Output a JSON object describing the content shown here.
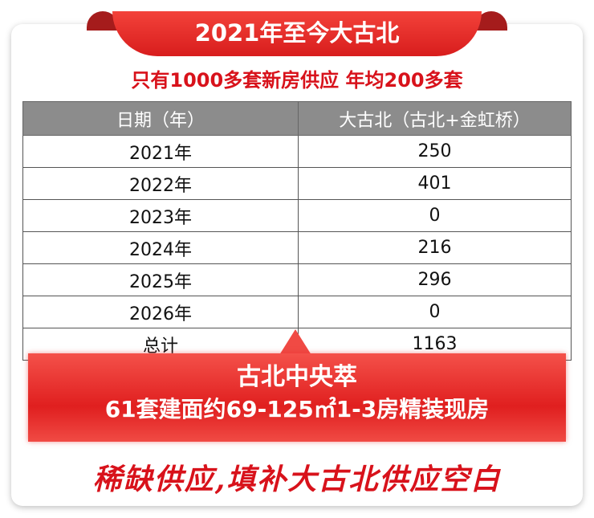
{
  "banner": {
    "title": "2021年至今大古北"
  },
  "subtitle": "只有1000多套新房供应 年均200多套",
  "table": {
    "headers": [
      "日期（年）",
      "大古北（古北+金虹桥）"
    ],
    "rows": [
      [
        "2021年",
        "250"
      ],
      [
        "2022年",
        "401"
      ],
      [
        "2023年",
        "0"
      ],
      [
        "2024年",
        "216"
      ],
      [
        "2025年",
        "296"
      ],
      [
        "2026年",
        "0"
      ],
      [
        "总计",
        "1163"
      ]
    ]
  },
  "highlight": {
    "title": "古北中央萃",
    "detail": "61套建面约69-125㎡1-3房精装现房"
  },
  "slogan": "稀缺供应,填补大古北供应空白",
  "colors": {
    "accent": "#d8121b",
    "header_gray": "#8c8c8c"
  }
}
